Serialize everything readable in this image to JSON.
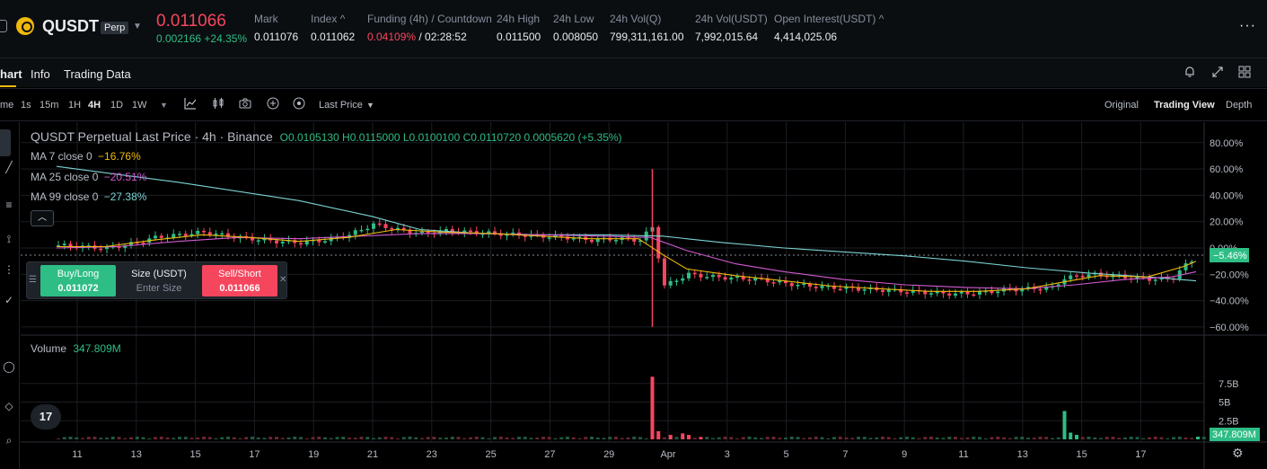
{
  "header": {
    "symbol": "QUSDT",
    "badge": "Perp",
    "last_price": "0.011066",
    "change": "0.002166 +24.35%",
    "stats": [
      {
        "label": "Mark",
        "value": "0.011076",
        "x": 283
      },
      {
        "label": "Index ^",
        "value": "0.011062",
        "x": 346
      },
      {
        "label": "Funding (4h) / Countdown",
        "value": "0.04109%",
        "value2": " / 02:28:52",
        "x": 409
      },
      {
        "label": "24h High",
        "value": "0.011500",
        "x": 553
      },
      {
        "label": "24h Low",
        "value": "0.008050",
        "x": 616
      },
      {
        "label": "24h Vol(Q)",
        "value": "799,311,161.00",
        "x": 679
      },
      {
        "label": "24h Vol(USDT)",
        "value": "7,992,015.64",
        "x": 774
      },
      {
        "label": "Open Interest(USDT) ^",
        "value": "4,414,025.06",
        "x": 862
      }
    ],
    "more": "···"
  },
  "tabs": {
    "chart": "hart",
    "info": "Info",
    "trading_data": "Trading Data"
  },
  "toolbar": {
    "time_label": "me",
    "timeframes": [
      "1s",
      "15m",
      "1H",
      "4H",
      "1D",
      "1W"
    ],
    "active_tf": "4H",
    "price_type": "Last Price",
    "views": [
      "Original",
      "Trading View",
      "Depth"
    ],
    "active_view": "Trading View"
  },
  "legend": {
    "title": "QUSDT Perpetual Last Price · 4h · Binance",
    "ohlc": "O0.0105130 H0.0115000 L0.0100100 C0.0110720 0.0005620 (+5.35%)",
    "ma7_label": "MA 7 close 0",
    "ma7_value": "−16.76%",
    "ma25_label": "MA 25 close 0",
    "ma25_value": "−20.51%",
    "ma99_label": "MA 99 close 0",
    "ma99_value": "−27.38%"
  },
  "trade": {
    "buy_label": "Buy/Long",
    "buy_price": "0.011072",
    "size_label": "Size (USDT)",
    "size_placeholder": "Enter Size",
    "sell_label": "Sell/Short",
    "sell_price": "0.011066"
  },
  "volume": {
    "label": "Volume",
    "value": "347.809M"
  },
  "colors": {
    "up": "#2ebd85",
    "down": "#f6465d",
    "ma7": "#f0b90b",
    "ma25": "#d25ad2",
    "ma99": "#7cd3d4",
    "accent": "#f0b90b"
  },
  "chart_data": {
    "type": "candlestick",
    "price_axis_ticks": [
      "80.00%",
      "60.00%",
      "40.00%",
      "20.00%",
      "0.00%",
      "−20.00%",
      "−40.00%",
      "−60.00%"
    ],
    "price_axis_values": [
      80,
      60,
      40,
      20,
      0,
      -20,
      -40,
      -60
    ],
    "current_label": "−5.46%",
    "current_value": -5.46,
    "volume_axis_ticks": [
      "7.5B",
      "5B",
      "2.5B"
    ],
    "volume_axis_values": [
      7.5,
      5,
      2.5
    ],
    "volume_current_label": "347.809M",
    "x_ticks": [
      "11",
      "13",
      "15",
      "17",
      "19",
      "21",
      "23",
      "25",
      "27",
      "29",
      "Apr",
      "3",
      "5",
      "7",
      "9",
      "11",
      "13",
      "15",
      "17"
    ],
    "price_series": [
      [
        0,
        2
      ],
      [
        4,
        1
      ],
      [
        8,
        0
      ],
      [
        12,
        3
      ],
      [
        16,
        8
      ],
      [
        20,
        10
      ],
      [
        24,
        12
      ],
      [
        28,
        9
      ],
      [
        32,
        7
      ],
      [
        36,
        5
      ],
      [
        40,
        4
      ],
      [
        44,
        6
      ],
      [
        48,
        10
      ],
      [
        52,
        18
      ],
      [
        56,
        14
      ],
      [
        60,
        11
      ],
      [
        64,
        13
      ],
      [
        68,
        12
      ],
      [
        72,
        11
      ],
      [
        76,
        10
      ],
      [
        80,
        9
      ],
      [
        84,
        8
      ],
      [
        88,
        6
      ],
      [
        92,
        7
      ],
      [
        96,
        6
      ],
      [
        98,
        16
      ],
      [
        100,
        -29
      ],
      [
        102,
        -24
      ],
      [
        104,
        -20
      ],
      [
        108,
        -22
      ],
      [
        112,
        -23
      ],
      [
        116,
        -24
      ],
      [
        120,
        -27
      ],
      [
        124,
        -29
      ],
      [
        128,
        -30
      ],
      [
        132,
        -31
      ],
      [
        136,
        -32
      ],
      [
        140,
        -33
      ],
      [
        144,
        -34
      ],
      [
        148,
        -35
      ],
      [
        152,
        -34
      ],
      [
        156,
        -32
      ],
      [
        160,
        -31
      ],
      [
        164,
        -30
      ],
      [
        166,
        -23
      ],
      [
        170,
        -20
      ],
      [
        174,
        -21
      ],
      [
        178,
        -23
      ],
      [
        182,
        -24
      ],
      [
        184,
        -22
      ],
      [
        186,
        -13
      ],
      [
        188,
        -6
      ]
    ],
    "ma7": [
      [
        0,
        1
      ],
      [
        8,
        1
      ],
      [
        16,
        6
      ],
      [
        24,
        10
      ],
      [
        32,
        8
      ],
      [
        40,
        5
      ],
      [
        48,
        8
      ],
      [
        56,
        14
      ],
      [
        64,
        12
      ],
      [
        72,
        11
      ],
      [
        80,
        9
      ],
      [
        88,
        7
      ],
      [
        96,
        7
      ],
      [
        100,
        -5
      ],
      [
        104,
        -16
      ],
      [
        112,
        -21
      ],
      [
        120,
        -25
      ],
      [
        128,
        -29
      ],
      [
        136,
        -31
      ],
      [
        144,
        -33
      ],
      [
        152,
        -33
      ],
      [
        160,
        -31
      ],
      [
        166,
        -26
      ],
      [
        172,
        -21
      ],
      [
        180,
        -22
      ],
      [
        186,
        -14
      ],
      [
        188,
        -10
      ]
    ],
    "ma25": [
      [
        0,
        0
      ],
      [
        10,
        1
      ],
      [
        20,
        5
      ],
      [
        30,
        8
      ],
      [
        40,
        7
      ],
      [
        50,
        9
      ],
      [
        60,
        11
      ],
      [
        70,
        11
      ],
      [
        80,
        10
      ],
      [
        90,
        9
      ],
      [
        98,
        8
      ],
      [
        104,
        -2
      ],
      [
        112,
        -12
      ],
      [
        120,
        -18
      ],
      [
        130,
        -24
      ],
      [
        140,
        -28
      ],
      [
        150,
        -30
      ],
      [
        160,
        -31
      ],
      [
        168,
        -28
      ],
      [
        176,
        -24
      ],
      [
        184,
        -22
      ],
      [
        188,
        -18
      ]
    ],
    "ma99": [
      [
        0,
        62
      ],
      [
        20,
        50
      ],
      [
        40,
        36
      ],
      [
        52,
        24
      ],
      [
        60,
        14
      ],
      [
        70,
        11
      ],
      [
        80,
        10
      ],
      [
        90,
        10
      ],
      [
        100,
        9
      ],
      [
        110,
        4
      ],
      [
        120,
        0
      ],
      [
        130,
        -3
      ],
      [
        140,
        -6
      ],
      [
        150,
        -10
      ],
      [
        160,
        -15
      ],
      [
        170,
        -19
      ],
      [
        180,
        -22
      ],
      [
        188,
        -25
      ]
    ],
    "spike": {
      "x": 98,
      "high": 60,
      "low": -60
    },
    "volume_bars": [
      [
        98,
        8.4
      ],
      [
        99,
        1.1
      ],
      [
        101,
        0.6
      ],
      [
        103,
        0.8
      ],
      [
        104,
        0.6
      ],
      [
        106,
        0.3
      ],
      [
        166,
        3.8
      ],
      [
        167,
        0.9
      ],
      [
        168,
        0.6
      ],
      [
        188,
        0.35
      ]
    ]
  }
}
